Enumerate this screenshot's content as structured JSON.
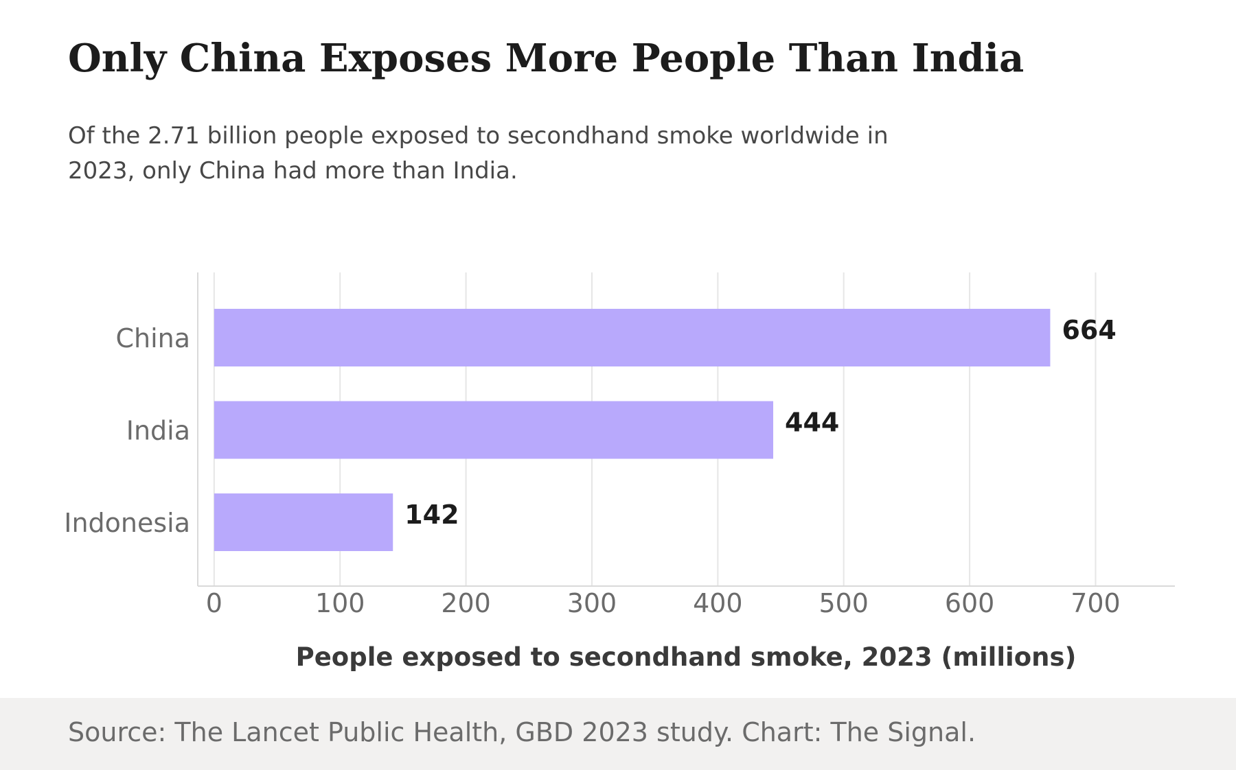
{
  "title": "Only China Exposes More People Than India",
  "subtitle": "Of the 2.71 billion people exposed to secondhand smoke worldwide in 2023, only China had more than India.",
  "source": "Source: The Lancet Public Health, GBD 2023 study. Chart: The Signal.",
  "colors": {
    "bar": "#b8a9fc",
    "value_label": "#1c1c1c",
    "tick_label": "#6b6b6b",
    "grid": "#e6e6e6",
    "footer_bg": "#f2f1f0"
  },
  "chart_data": {
    "type": "bar",
    "orientation": "horizontal",
    "categories": [
      "China",
      "India",
      "Indonesia"
    ],
    "values": [
      664,
      444,
      142
    ],
    "value_labels": [
      "664",
      "444",
      "142"
    ],
    "xlabel": "People exposed to secondhand smoke, 2023 (millions)",
    "ylabel": "",
    "xlim": [
      -13,
      763
    ],
    "xticks": [
      0,
      100,
      200,
      300,
      400,
      500,
      600,
      700
    ],
    "xtick_labels": [
      "0",
      "100",
      "200",
      "300",
      "400",
      "500",
      "600",
      "700"
    ],
    "grid": "vertical",
    "legend": "none"
  }
}
